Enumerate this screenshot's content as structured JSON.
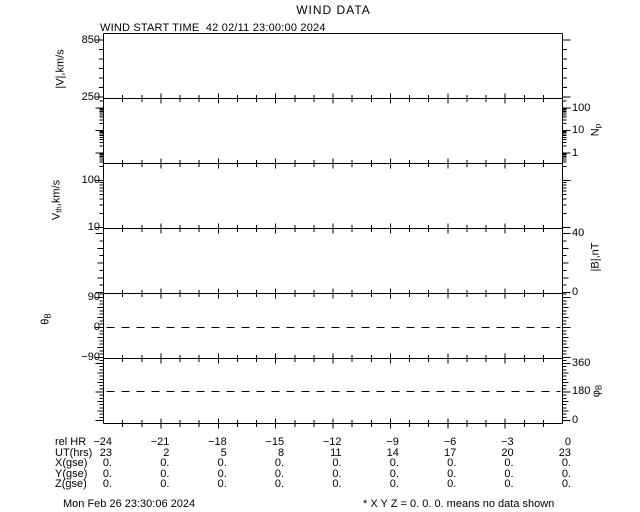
{
  "window": {
    "title": "WIND DATA"
  },
  "chart_data": {
    "type": "line",
    "title": "WIND DATA",
    "subtitle": "WIND START TIME  42 02/11 23:00:00 2024",
    "x_axis": {
      "label": "rel HR",
      "units_label": "UT(hrs)",
      "range": [
        -24,
        0
      ],
      "major_tick_step_hours": 3,
      "minor_tick_step_hours": 1,
      "tick_values": [
        -24,
        -21,
        -18,
        -15,
        -12,
        -9,
        -6,
        -3,
        0
      ]
    },
    "panels": [
      {
        "id": "bulk-speed",
        "ylabel": {
          "pre": "|V|,km/s",
          "sub": "",
          "post": ""
        },
        "scale": "linear",
        "ticks_side": "left",
        "yticks": [
          {
            "value": 850,
            "label": "850"
          },
          {
            "value": 250,
            "label": "250"
          }
        ],
        "series": [],
        "dashed_line_at": null
      },
      {
        "id": "proton-density",
        "ylabel": {
          "pre": "N",
          "sub": "p",
          "post": ""
        },
        "scale": "log",
        "ticks_side": "right",
        "yticks": [
          {
            "value": 100,
            "label": "100"
          },
          {
            "value": 10,
            "label": "10"
          },
          {
            "value": 1,
            "label": "1"
          }
        ],
        "series": [],
        "dashed_line_at": null
      },
      {
        "id": "thermal-speed",
        "ylabel": {
          "pre": "V",
          "sub": "th",
          "post": ",km/s"
        },
        "scale": "log",
        "ticks_side": "left",
        "yticks": [
          {
            "value": 100,
            "label": "100"
          },
          {
            "value": 10,
            "label": "10"
          }
        ],
        "series": [],
        "dashed_line_at": null
      },
      {
        "id": "field-magnitude",
        "ylabel": {
          "pre": "|B|,nT",
          "sub": "",
          "post": ""
        },
        "scale": "linear",
        "ticks_side": "right",
        "yticks": [
          {
            "value": 40,
            "label": "40"
          },
          {
            "value": 0,
            "label": "0"
          }
        ],
        "series": [],
        "dashed_line_at": null
      },
      {
        "id": "field-theta",
        "ylabel": {
          "pre": "θ",
          "sub": "B",
          "post": ""
        },
        "scale": "linear",
        "ticks_side": "left",
        "yticks": [
          {
            "value": 90,
            "label": "90"
          },
          {
            "value": 0,
            "label": "0"
          },
          {
            "value": -90,
            "label": "−90"
          }
        ],
        "series": [],
        "dashed_line_at": 0
      },
      {
        "id": "field-phi",
        "ylabel": {
          "pre": "φ",
          "sub": "B",
          "post": ""
        },
        "scale": "linear",
        "ticks_side": "right",
        "yticks": [
          {
            "value": 360,
            "label": "360"
          },
          {
            "value": 180,
            "label": "180"
          },
          {
            "value": 0,
            "label": "0"
          }
        ],
        "series": [],
        "dashed_line_at": 180
      }
    ],
    "no_data_plotted": true
  },
  "table": {
    "rows": [
      {
        "label": "rel HR",
        "values": [
          "−24",
          "−21",
          "−18",
          "−15",
          "−12",
          "−9",
          "−6",
          "−3",
          "0"
        ]
      },
      {
        "label": "UT(hrs)",
        "values": [
          "23",
          "2",
          "5",
          "8",
          "11",
          "14",
          "17",
          "20",
          "23"
        ]
      },
      {
        "label": "X(gse)",
        "values": [
          "0.",
          "0.",
          "0.",
          "0.",
          "0.",
          "0.",
          "0.",
          "0.",
          "0."
        ]
      },
      {
        "label": "Y(gse)",
        "values": [
          "0.",
          "0.",
          "0.",
          "0.",
          "0.",
          "0.",
          "0.",
          "0.",
          "0."
        ]
      },
      {
        "label": "Z(gse)",
        "values": [
          "0.",
          "0.",
          "0.",
          "0.",
          "0.",
          "0.",
          "0.",
          "0.",
          "0."
        ]
      }
    ]
  },
  "footer": {
    "generated_at": "Mon Feb 26 23:30:06 2024",
    "note": "* X Y Z = 0. 0. 0. means no data shown"
  }
}
